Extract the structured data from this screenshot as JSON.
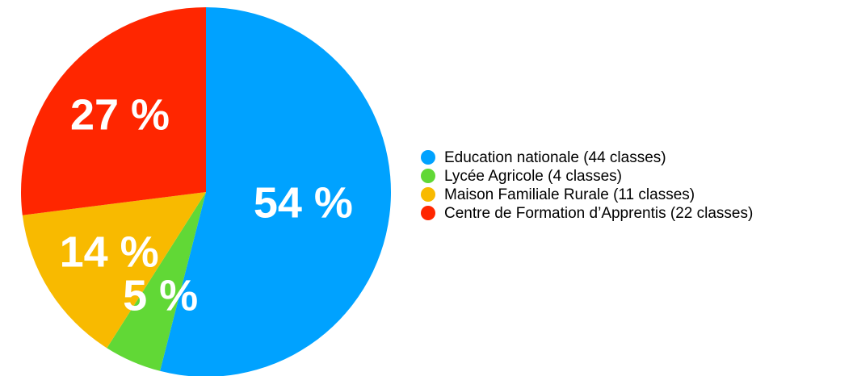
{
  "chart_data": {
    "type": "pie",
    "categories": [
      "Education nationale (44 classes)",
      "Lycée Agricole (4 classes)",
      "Maison Familiale Rurale (11 classes)",
      "Centre de Formation d’Apprentis (22 classes)"
    ],
    "values": [
      54,
      5,
      14,
      27
    ],
    "value_labels": [
      "54 %",
      "5 %",
      "14 %",
      "27 %"
    ],
    "colors": [
      "#00a2ff",
      "#61d836",
      "#f8ba00",
      "#ff2600"
    ],
    "legend": "right"
  }
}
